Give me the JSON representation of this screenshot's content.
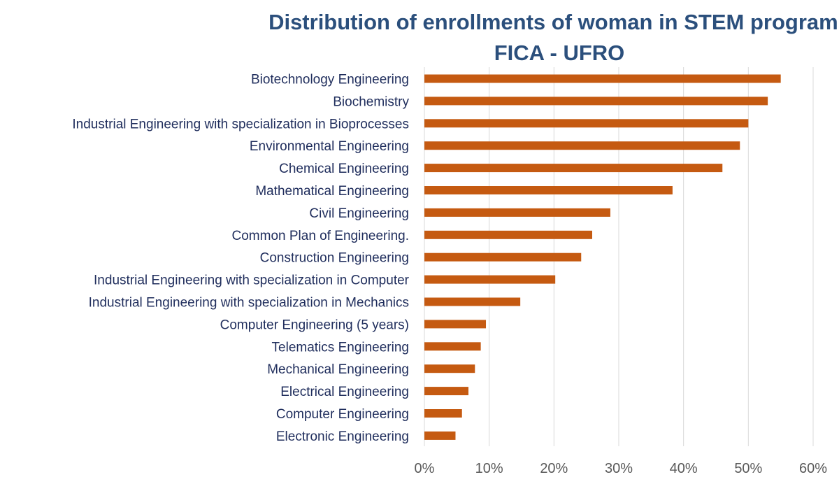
{
  "chart_data": {
    "type": "bar",
    "orientation": "horizontal",
    "title": "Distribution of enrollments of woman in STEM programs",
    "subtitle": "FICA - UFRO",
    "xlabel": "",
    "ylabel": "",
    "xlim": [
      0,
      60
    ],
    "x_ticks": [
      "0%",
      "10%",
      "20%",
      "30%",
      "40%",
      "50%",
      "60%"
    ],
    "x_tick_values": [
      0,
      10,
      20,
      30,
      40,
      50,
      60
    ],
    "grid": "vertical",
    "legend": "none",
    "bar_color": "#c55a11",
    "grid_color": "#d9d9d9",
    "label_color": "#1f2d5c",
    "title_color": "#2b4f7c",
    "categories": [
      "Biotechnology Engineering",
      "Biochemistry",
      "Industrial Engineering with specialization in Bioprocesses",
      "Environmental Engineering",
      "Chemical Engineering",
      "Mathematical Engineering",
      "Civil Engineering",
      "Common Plan of Engineering.",
      "Construction Engineering",
      "Industrial Engineering with specialization in Computer",
      "Industrial Engineering with specialization in Mechanics",
      "Computer Engineering (5 years)",
      "Telematics Engineering",
      "Mechanical Engineering",
      "Electrical Engineering",
      "Computer Engineering",
      "Electronic Engineering"
    ],
    "values": [
      55.0,
      53.0,
      50.0,
      48.7,
      46.0,
      38.3,
      28.7,
      25.9,
      24.2,
      20.2,
      14.8,
      9.5,
      8.7,
      7.8,
      6.8,
      5.8,
      4.8
    ]
  }
}
